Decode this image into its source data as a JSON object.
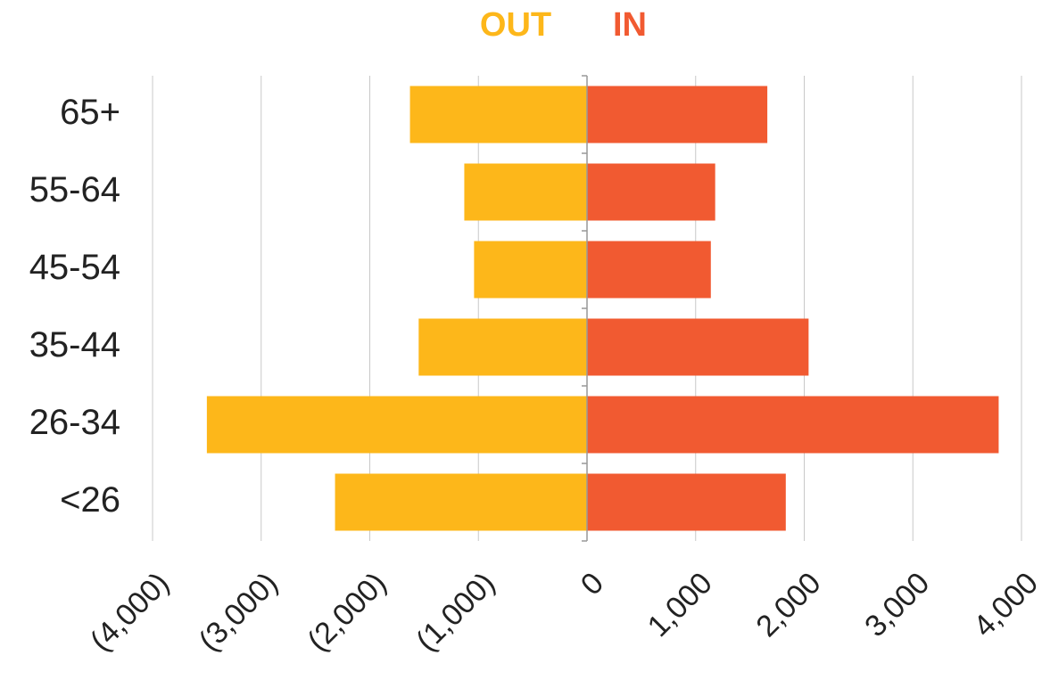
{
  "chart_data": {
    "type": "bar",
    "orientation": "horizontal",
    "categories": [
      "65+",
      "55-64",
      "45-54",
      "35-44",
      "26-34",
      "<26"
    ],
    "series": [
      {
        "name": "OUT",
        "color": "#fdb71a",
        "values": [
          -1630,
          -1130,
          -1040,
          -1550,
          -3500,
          -2320
        ]
      },
      {
        "name": "IN",
        "color": "#f15a31",
        "values": [
          1660,
          1180,
          1140,
          2040,
          3790,
          1830
        ]
      }
    ],
    "xlim": [
      -4000,
      4000
    ],
    "xticks": [
      {
        "value": -4000,
        "label": "(4,000)"
      },
      {
        "value": -3000,
        "label": "(3,000)"
      },
      {
        "value": -2000,
        "label": "(2,000)"
      },
      {
        "value": -1000,
        "label": "(1,000)"
      },
      0,
      {
        "value": 1000,
        "label": "1,000"
      },
      {
        "value": 2000,
        "label": "2,000"
      },
      {
        "value": 3000,
        "label": "3,000"
      },
      {
        "value": 4000,
        "label": "4,000"
      }
    ],
    "grid": true,
    "legend": "top"
  }
}
